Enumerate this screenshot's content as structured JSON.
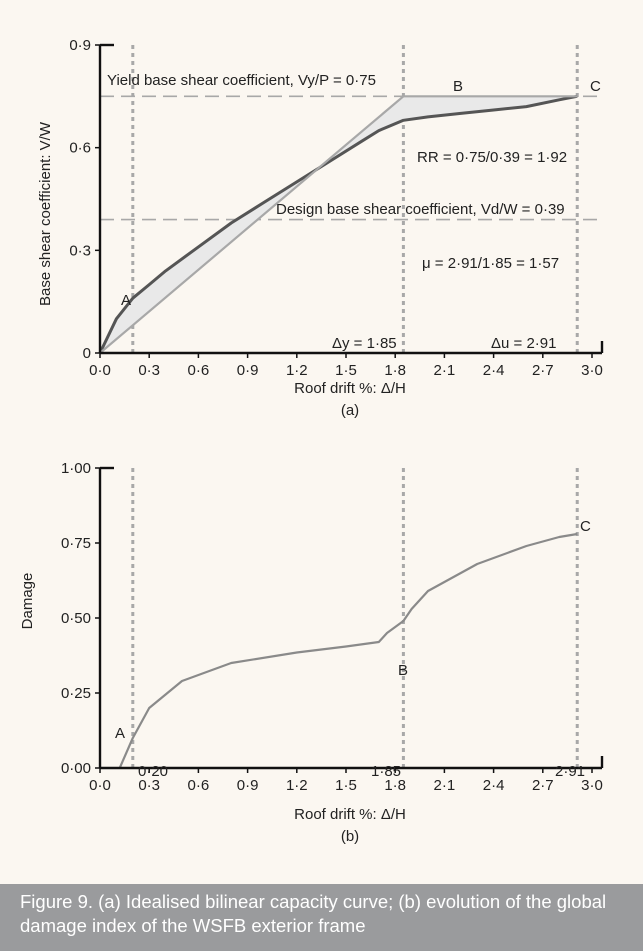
{
  "caption": "Figure 9. (a) Idealised bilinear capacity curve; (b) evolution of the global damage index of the WSFB exterior frame",
  "colors": {
    "capacity_curve": "#555555",
    "bilinear": "#a8a8a8",
    "fill": "#e9e9e9",
    "damage_curve": "#8a8a8a",
    "dashed_lines": "#a8a8a8",
    "background": "#fbf7f1",
    "caption_bar": "#9a9b9d"
  },
  "chart_data": [
    {
      "type": "line",
      "panel_label": "(a)",
      "xlabel": "Roof drift %: Δ/H",
      "ylabel": "Base shear coefficient: V/W",
      "xlim": [
        0,
        3.0
      ],
      "ylim": [
        0,
        0.9
      ],
      "x_ticks": [
        "0·0",
        "0·3",
        "0·6",
        "0·9",
        "1·2",
        "1·5",
        "1·8",
        "2·1",
        "2·4",
        "2·7",
        "3·0"
      ],
      "y_ticks": [
        "0",
        "0·3",
        "0·6",
        "0·9"
      ],
      "series": [
        {
          "style": "capacity",
          "x": [
            0.0,
            0.1,
            0.2,
            0.3,
            0.4,
            0.6,
            0.8,
            1.0,
            1.2,
            1.4,
            1.6,
            1.7,
            1.85,
            2.0,
            2.2,
            2.4,
            2.6,
            2.8,
            2.91
          ],
          "y": [
            0.0,
            0.1,
            0.16,
            0.2,
            0.24,
            0.31,
            0.38,
            0.44,
            0.5,
            0.56,
            0.62,
            0.65,
            0.68,
            0.69,
            0.7,
            0.71,
            0.72,
            0.74,
            0.75
          ]
        },
        {
          "style": "bilinear",
          "x": [
            0.0,
            1.85,
            2.91
          ],
          "y": [
            0.0,
            0.75,
            0.75
          ]
        }
      ],
      "vlines": [
        0.2,
        1.85,
        2.91
      ],
      "hlines": [
        {
          "y": 0.75,
          "label": "Yield base shear coefficient, Vy/P = 0·75"
        },
        {
          "y": 0.39,
          "label": "Design base shear coefficient, Vd/W = 0·39"
        }
      ],
      "point_labels": [
        {
          "label": "A",
          "x": 0.2,
          "y": 0.13
        },
        {
          "label": "B",
          "x": 1.85,
          "y": 0.75
        },
        {
          "label": "C",
          "x": 2.91,
          "y": 0.75
        }
      ],
      "annotations": {
        "rr": "RR = 0·75/0·39 = 1·92",
        "mu": "μ = 2·91/1·85 = 1·57",
        "dy": "Δy = 1·85",
        "du": "Δu = 2·91"
      }
    },
    {
      "type": "line",
      "panel_label": "(b)",
      "xlabel": "Roof drift %: Δ/H",
      "ylabel": "Damage",
      "xlim": [
        0,
        3.0
      ],
      "ylim": [
        0,
        1.0
      ],
      "x_ticks": [
        "0·0",
        "0·3",
        "0·6",
        "0·9",
        "1·2",
        "1·5",
        "1·8",
        "2·1",
        "2·4",
        "2·7",
        "3·0"
      ],
      "y_ticks": [
        "0·00",
        "0·25",
        "0·50",
        "0·75",
        "1·00"
      ],
      "series": [
        {
          "style": "damage",
          "x": [
            0.12,
            0.2,
            0.3,
            0.5,
            0.8,
            1.2,
            1.5,
            1.7,
            1.75,
            1.85,
            1.9,
            2.0,
            2.3,
            2.6,
            2.8,
            2.91
          ],
          "y": [
            0.0,
            0.1,
            0.2,
            0.29,
            0.35,
            0.385,
            0.405,
            0.42,
            0.45,
            0.49,
            0.53,
            0.59,
            0.68,
            0.74,
            0.77,
            0.78
          ]
        }
      ],
      "vlines": [
        0.2,
        1.85,
        2.91
      ],
      "point_labels": [
        {
          "label": "A",
          "x": 0.2,
          "y": 0.1
        },
        {
          "label": "B",
          "x": 1.85,
          "y": 0.49
        },
        {
          "label": "C",
          "x": 2.91,
          "y": 0.78
        }
      ],
      "vline_labels": [
        "0·20",
        "1·85",
        "2·91"
      ]
    }
  ]
}
